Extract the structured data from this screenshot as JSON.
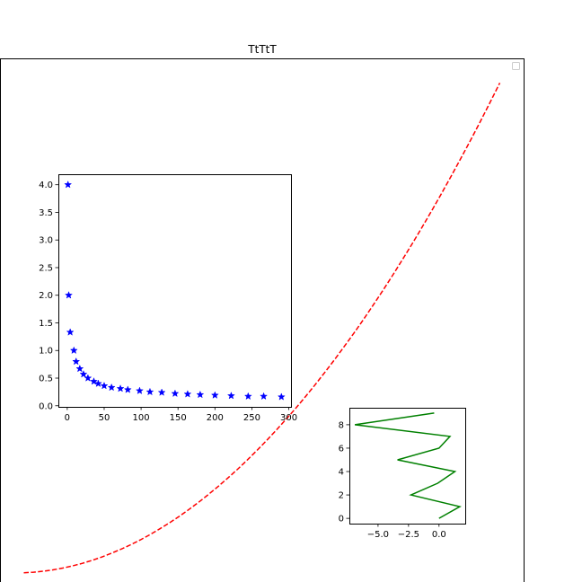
{
  "chart_data": [
    {
      "type": "line",
      "title": "TtTtT",
      "xlabel": "",
      "ylabel": "",
      "axis_ticks_visible": false,
      "legend": {
        "visible": true,
        "placement": "upper right",
        "entries": []
      },
      "series": [
        {
          "color": "#ff0000",
          "linestyle": "dashed",
          "x": [
            1,
            2,
            3,
            4,
            5,
            6,
            7,
            8,
            9,
            10,
            11,
            12,
            13,
            14,
            15,
            16,
            17,
            18,
            19,
            20,
            21,
            22,
            23,
            24,
            25,
            26,
            27,
            28,
            29,
            30,
            31,
            32,
            33,
            34,
            35,
            36,
            37,
            38,
            39,
            40,
            41,
            42,
            43,
            44,
            45,
            46,
            47,
            48,
            49,
            50
          ],
          "y": [
            1,
            4,
            9,
            16,
            25,
            36,
            49,
            64,
            81,
            100,
            121,
            144,
            169,
            196,
            225,
            256,
            289,
            324,
            361,
            400,
            441,
            484,
            529,
            576,
            625,
            676,
            729,
            784,
            841,
            900,
            961,
            1024,
            1089,
            1156,
            1225,
            1296,
            1369,
            1444,
            1521,
            1600,
            1681,
            1764,
            1849,
            1936,
            2025,
            2116,
            2209,
            2304,
            2401,
            2500
          ]
        }
      ]
    },
    {
      "type": "scatter",
      "title": "",
      "xlabel": "",
      "ylabel": "",
      "xlim": [
        -12,
        303
      ],
      "ylim": [
        -0.02,
        4.19
      ],
      "xticks": [
        "0",
        "50",
        "100",
        "150",
        "200",
        "250",
        "300"
      ],
      "yticks": [
        "0.0",
        "0.5",
        "1.0",
        "1.5",
        "2.0",
        "2.5",
        "3.0",
        "3.5",
        "4.0"
      ],
      "marker": "star",
      "color": "#0000ff",
      "x": [
        1,
        2,
        4,
        9,
        12,
        17,
        22,
        28,
        36,
        42,
        50,
        60,
        72,
        82,
        98,
        112,
        128,
        146,
        163,
        180,
        200,
        222,
        245,
        266,
        290
      ],
      "y": [
        4.0,
        2.0,
        1.33,
        1.0,
        0.8,
        0.67,
        0.57,
        0.5,
        0.44,
        0.4,
        0.36,
        0.33,
        0.31,
        0.29,
        0.27,
        0.25,
        0.24,
        0.22,
        0.21,
        0.2,
        0.19,
        0.18,
        0.17,
        0.17,
        0.16
      ]
    },
    {
      "type": "line",
      "title": "",
      "xlabel": "",
      "ylabel": "",
      "xlim": [
        -7.35,
        2.15
      ],
      "ylim": [
        -0.45,
        9.45
      ],
      "xticks": [
        "−5.0",
        "−2.5",
        "0.0"
      ],
      "yticks": [
        "0",
        "2",
        "4",
        "6",
        "8"
      ],
      "series": [
        {
          "color": "#008000",
          "x": [
            0,
            1.7,
            -2.3,
            -0.1,
            1.3,
            -3.4,
            0,
            0.9,
            -6.9,
            -0.4
          ],
          "y": [
            0,
            1,
            2,
            3,
            4,
            5,
            6,
            7,
            8,
            9
          ]
        }
      ]
    }
  ]
}
